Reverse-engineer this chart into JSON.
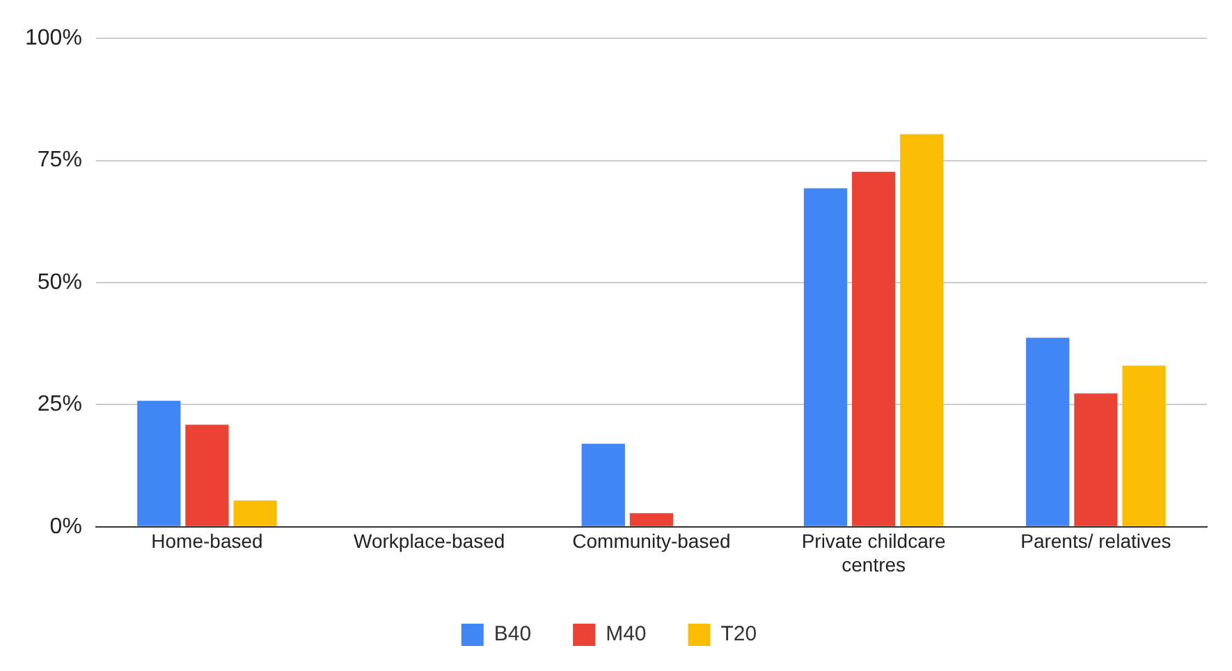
{
  "chart_data": {
    "type": "bar",
    "categories": [
      "Home-based",
      "Workplace-based",
      "Community-based",
      "Private childcare centres",
      "Parents/ relatives"
    ],
    "series": [
      {
        "name": "B40",
        "color": "#4285f4",
        "values": [
          25.8,
          0,
          17.0,
          69.3,
          38.7
        ]
      },
      {
        "name": "M40",
        "color": "#ea4335",
        "values": [
          20.9,
          0,
          2.8,
          72.7,
          27.3
        ]
      },
      {
        "name": "T20",
        "color": "#fbbc04",
        "values": [
          5.4,
          0,
          0,
          80.4,
          33.0
        ]
      }
    ],
    "ylim": [
      0,
      100
    ],
    "yticks": [
      {
        "value": 0,
        "label": "0%"
      },
      {
        "value": 25,
        "label": "25%"
      },
      {
        "value": 50,
        "label": "50%"
      },
      {
        "value": 75,
        "label": "75%"
      },
      {
        "value": 100,
        "label": "100%"
      }
    ],
    "grid": "y",
    "legend": "bottom"
  }
}
